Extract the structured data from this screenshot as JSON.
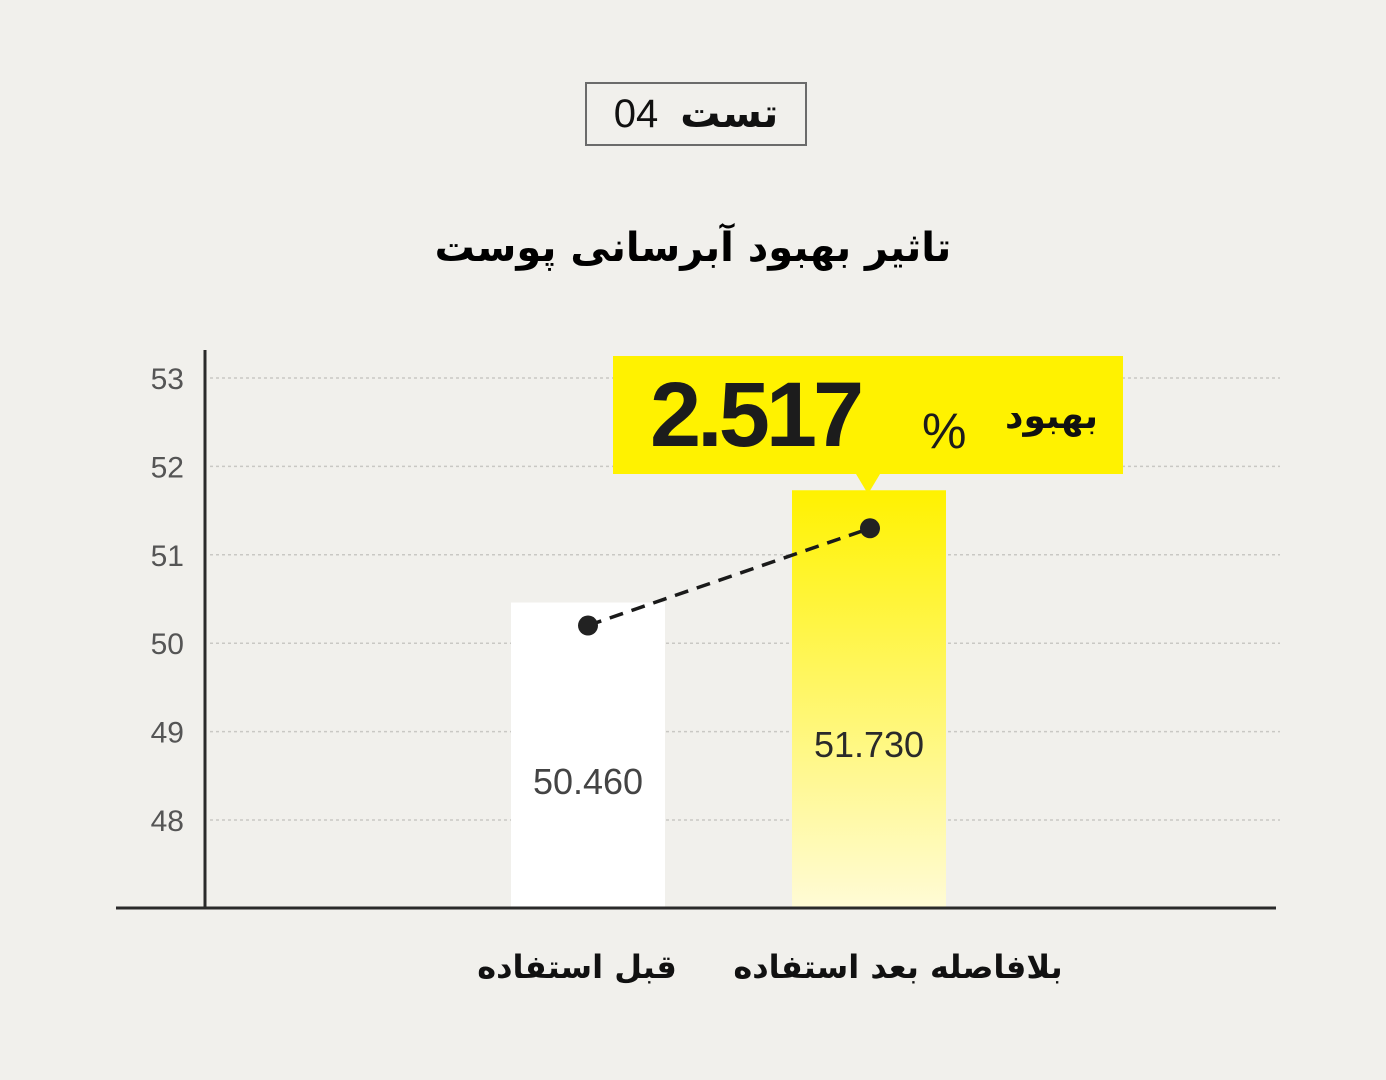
{
  "badge": {
    "word": "تست",
    "number": "04"
  },
  "title": "تاثیر بهبود آبرسانی پوست",
  "callout": {
    "value": "2.517",
    "unit": "%",
    "label": "بهبود"
  },
  "colors": {
    "highlight": "#fff200",
    "bar_before": "#ffffff",
    "background": "#f1f0ec"
  },
  "chart_data": {
    "type": "bar",
    "title": "تاثیر بهبود آبرسانی پوست",
    "categories": [
      "قبل استفاده",
      "بلافاصله بعد استفاده"
    ],
    "values": [
      50.46,
      51.73
    ],
    "value_labels": [
      "50.460",
      "51.730"
    ],
    "bar_colors": [
      "#ffffff",
      "#fff200"
    ],
    "yticks": [
      48,
      49,
      50,
      51,
      52,
      53
    ],
    "ylim": [
      47,
      53.3
    ],
    "grid": true,
    "connector": {
      "style": "dashed",
      "from_value": 50.2,
      "to_value": 51.3
    },
    "annotation": "بهبود 2.517%"
  }
}
